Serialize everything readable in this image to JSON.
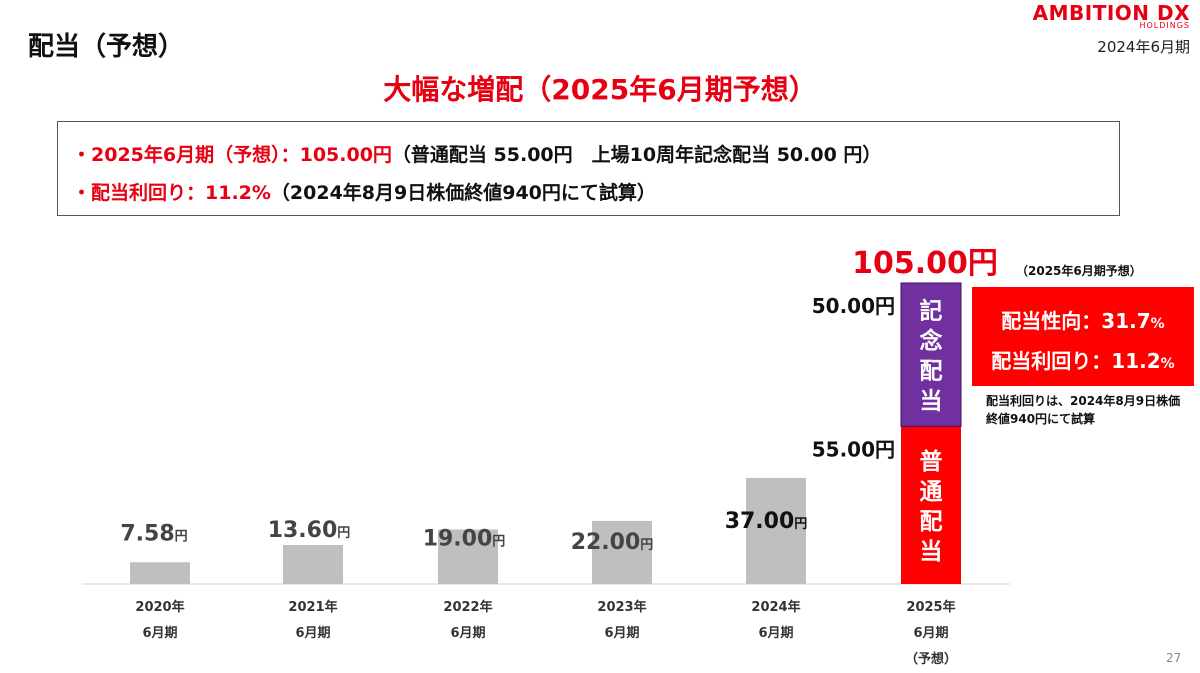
{
  "header": {
    "title": "配当（予想）",
    "logo_main": "AMBITION DX",
    "logo_sub": "HOLDINGS",
    "date": "2024年6月期"
  },
  "headline": "大幅な増配（2025年6月期予想）",
  "info": {
    "line1_red": "・2025年6月期（予想）：105.00円",
    "line1_black": "（普通配当 55.00円　上場10周年記念配当 50.00 円）",
    "line2_red": "・配当利回り：11.2%",
    "line2_black": "（2024年8月9日株価終値940円にて試算）"
  },
  "annotation": {
    "title": "（2025年6月期予想）",
    "payout_label": "配当性向：31.7",
    "payout_pct": "%",
    "yield_label": "配当利回り：11.2",
    "yield_pct": "%",
    "note": "配当利回りは、2024年8月9日株価終値940円にて試算"
  },
  "page_number": "27",
  "colors": {
    "accent_red": "#e60012",
    "bar_gray": "#bfbfbf",
    "ordinary_red": "#ff0000",
    "commemorative_purple": "#7030a0"
  },
  "chart_data": {
    "type": "bar",
    "unit": "円",
    "categories": [
      [
        "2020年",
        "6月期"
      ],
      [
        "2021年",
        "6月期"
      ],
      [
        "2022年",
        "6月期"
      ],
      [
        "2023年",
        "6月期"
      ],
      [
        "2024年",
        "6月期"
      ],
      [
        "2025年",
        "6月期",
        "（予想）"
      ]
    ],
    "values": [
      7.58,
      13.6,
      19.0,
      22.0,
      37.0,
      105.0
    ],
    "labels": [
      "7.58",
      "13.60",
      "19.00",
      "22.00",
      "37.00",
      "105.00円"
    ],
    "stack_2025": [
      {
        "name": "普通配当",
        "value": 55.0,
        "label": "55.00円",
        "vertical_text": "普通配当"
      },
      {
        "name": "記念配当",
        "value": 50.0,
        "label": "50.00円",
        "vertical_text": "記念配当"
      }
    ],
    "ylim": [
      0,
      105
    ]
  }
}
